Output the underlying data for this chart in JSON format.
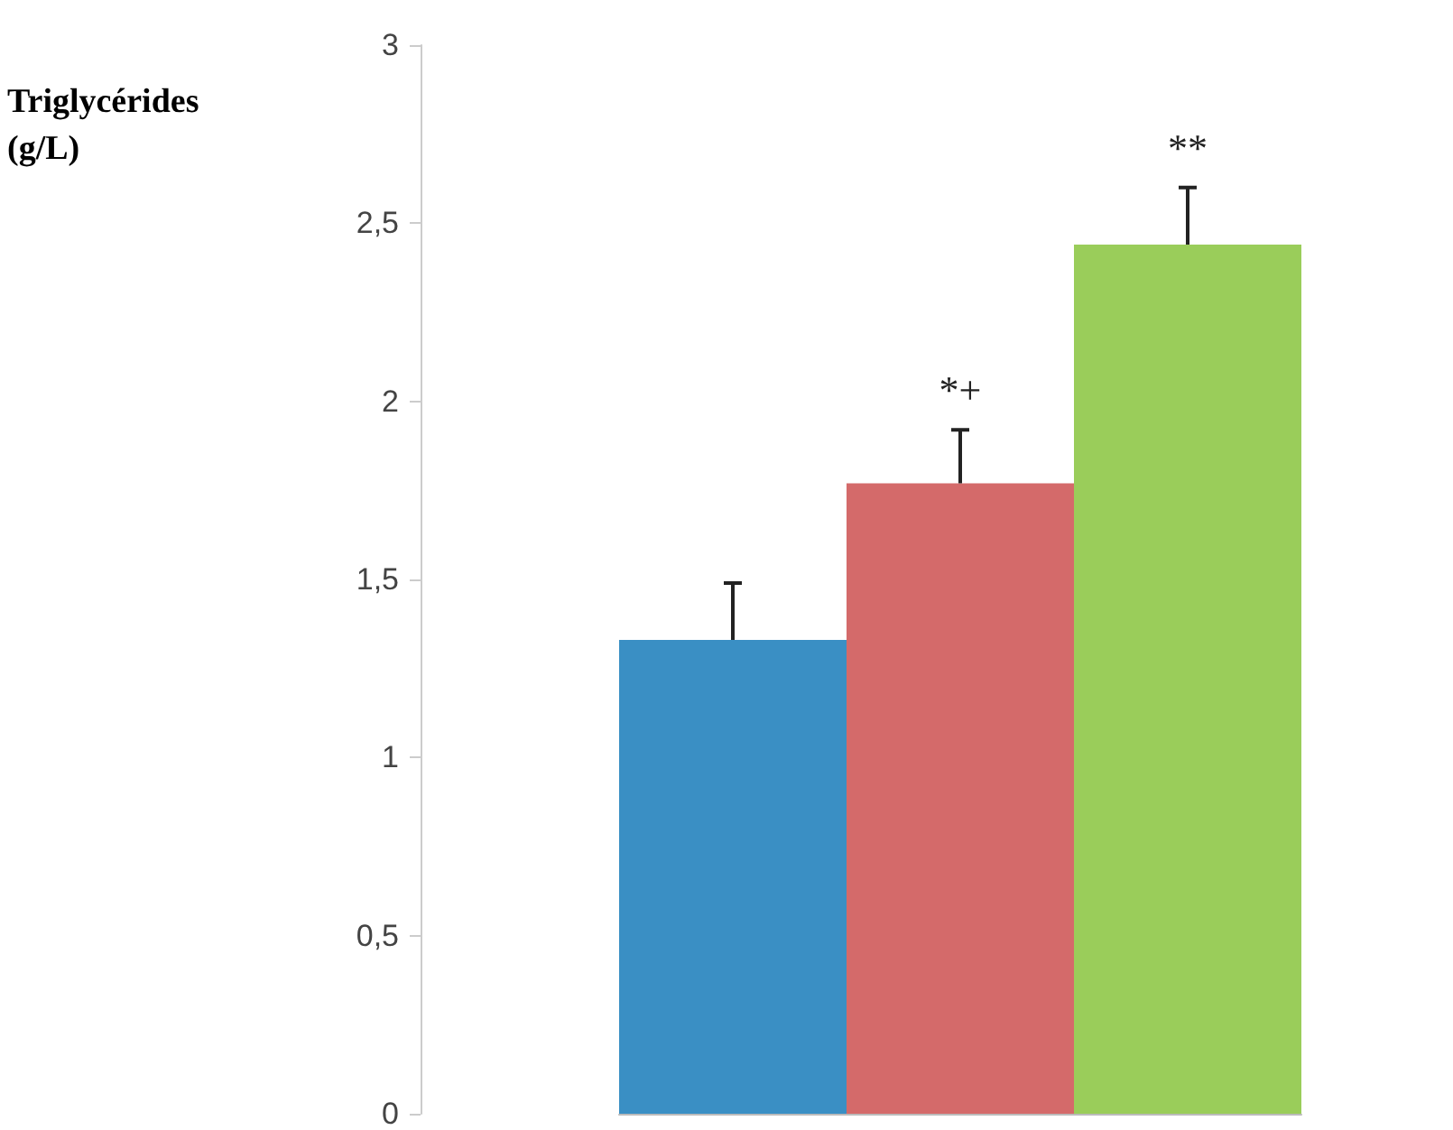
{
  "chart_data": {
    "type": "bar",
    "ylabel": "Triglycérides (g/L)",
    "categories": [
      null,
      null,
      null
    ],
    "values": [
      1.33,
      1.77,
      2.44
    ],
    "colors": [
      "#3a8fc4",
      "#d46a6a",
      "#9acd5a"
    ],
    "errors": [
      [
        1.33,
        1.49
      ],
      [
        1.77,
        1.92
      ],
      [
        2.44,
        2.6
      ]
    ],
    "annotations": [
      "*+",
      "**"
    ],
    "ylim": [
      0,
      3
    ],
    "yticks": [
      0,
      {
        "value": 0.5,
        "label": "0,5"
      },
      1,
      {
        "value": 1.5,
        "label": "1,5"
      },
      2,
      {
        "value": 2.5,
        "label": "2,5"
      },
      3
    ],
    "grid": false
  }
}
